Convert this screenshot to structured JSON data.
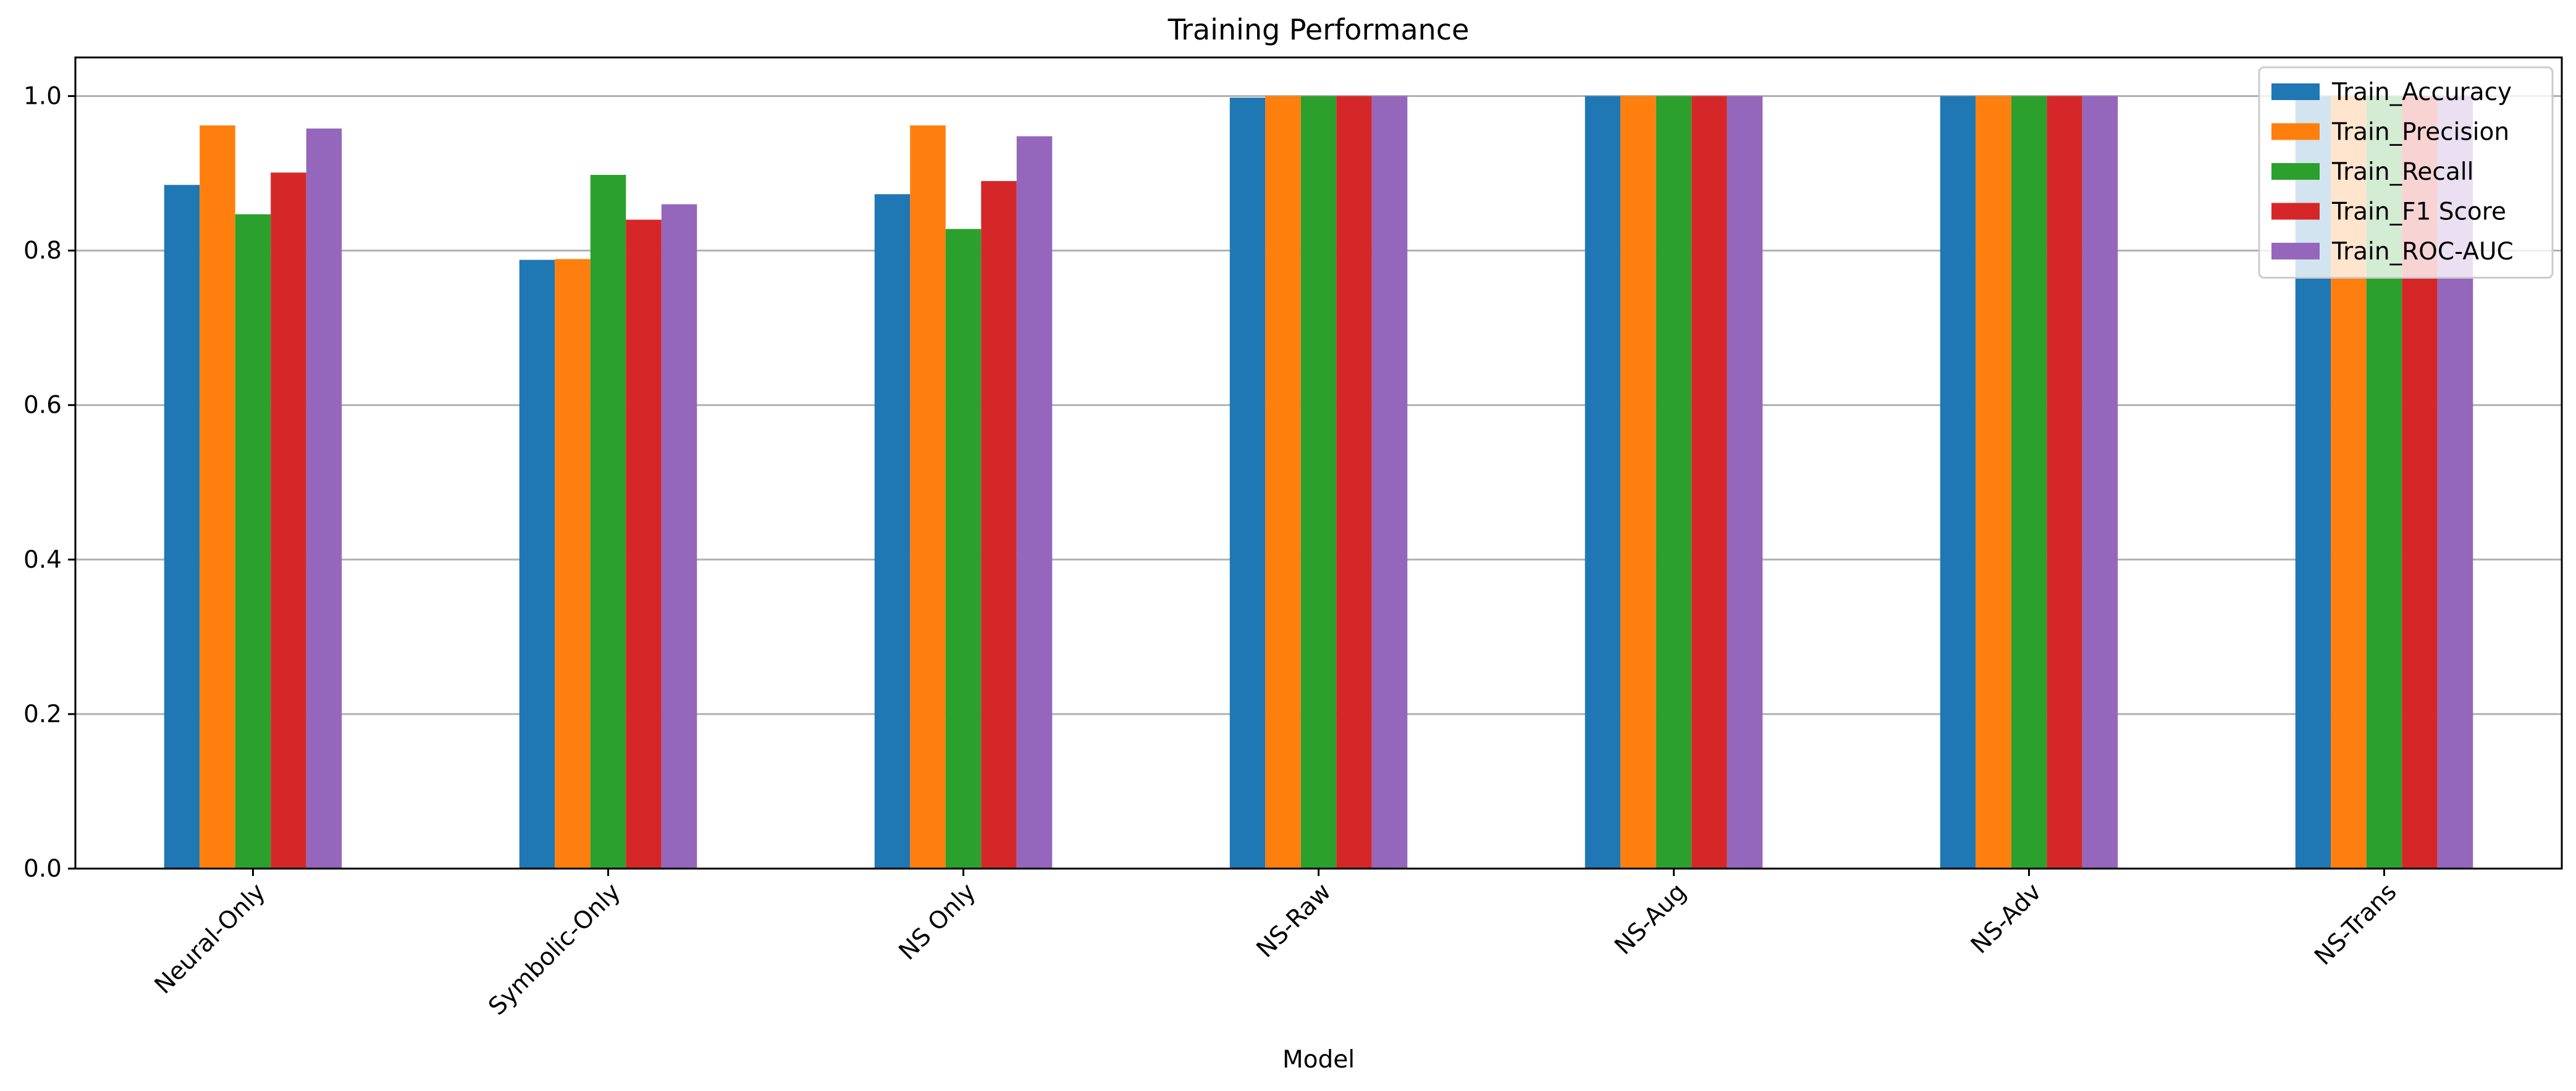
{
  "chart_data": {
    "type": "bar",
    "title": "Training Performance",
    "xlabel": "Model",
    "ylabel": "",
    "ylim": [
      0,
      1.05
    ],
    "yticks": [
      "0.0",
      "0.2",
      "0.4",
      "0.6",
      "0.8",
      "1.0"
    ],
    "ytick_values": [
      0,
      0.2,
      0.4,
      0.6,
      0.8,
      1.0
    ],
    "grid": "horizontal",
    "legend_position": "top-right",
    "categories": [
      "Neural-Only",
      "Symbolic-Only",
      "NS Only",
      "NS-Raw",
      "NS-Aug",
      "NS-Adv",
      "NS-Trans"
    ],
    "series": [
      {
        "name": "Train_Accuracy",
        "color": "#1f77b4",
        "values": [
          0.885,
          0.788,
          0.873,
          0.998,
          1.0,
          1.0,
          1.0
        ]
      },
      {
        "name": "Train_Precision",
        "color": "#ff7f0e",
        "values": [
          0.962,
          0.789,
          0.962,
          1.0,
          1.0,
          1.0,
          1.0
        ]
      },
      {
        "name": "Train_Recall",
        "color": "#2ca02c",
        "values": [
          0.847,
          0.898,
          0.828,
          1.0,
          1.0,
          1.0,
          1.0
        ]
      },
      {
        "name": "Train_F1 Score",
        "color": "#d62728",
        "values": [
          0.901,
          0.84,
          0.89,
          1.0,
          1.0,
          1.0,
          1.0
        ]
      },
      {
        "name": "Train_ROC-AUC",
        "color": "#9467bd",
        "values": [
          0.958,
          0.86,
          0.948,
          1.0,
          1.0,
          1.0,
          1.0
        ]
      }
    ]
  }
}
